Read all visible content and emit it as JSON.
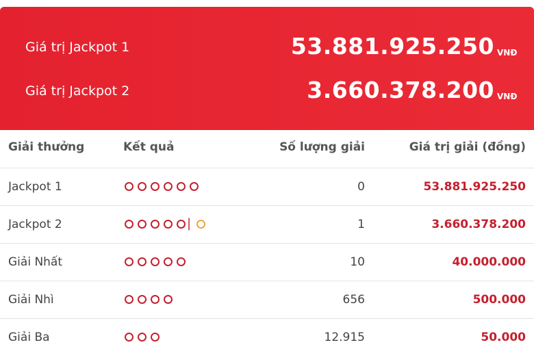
{
  "header": {
    "rows": [
      {
        "label": "Giá trị Jackpot 1",
        "value": "53.881.925.250",
        "unit": "VNĐ"
      },
      {
        "label": "Giá trị Jackpot 2",
        "value": "3.660.378.200",
        "unit": "VNĐ"
      }
    ]
  },
  "table": {
    "columns": [
      "Giải thưởng",
      "Kết quả",
      "Số lượng giải",
      "Giá trị giải (đồng)"
    ],
    "rows": [
      {
        "name": "Jackpot 1",
        "matches": 6,
        "special": 0,
        "count": "0",
        "prize": "53.881.925.250"
      },
      {
        "name": "Jackpot 2",
        "matches": 5,
        "special": 1,
        "count": "1",
        "prize": "3.660.378.200"
      },
      {
        "name": "Giải Nhất",
        "matches": 5,
        "special": 0,
        "count": "10",
        "prize": "40.000.000"
      },
      {
        "name": "Giải Nhì",
        "matches": 4,
        "special": 0,
        "count": "656",
        "prize": "500.000"
      },
      {
        "name": "Giải Ba",
        "matches": 3,
        "special": 0,
        "count": "12.915",
        "prize": "50.000"
      }
    ]
  }
}
